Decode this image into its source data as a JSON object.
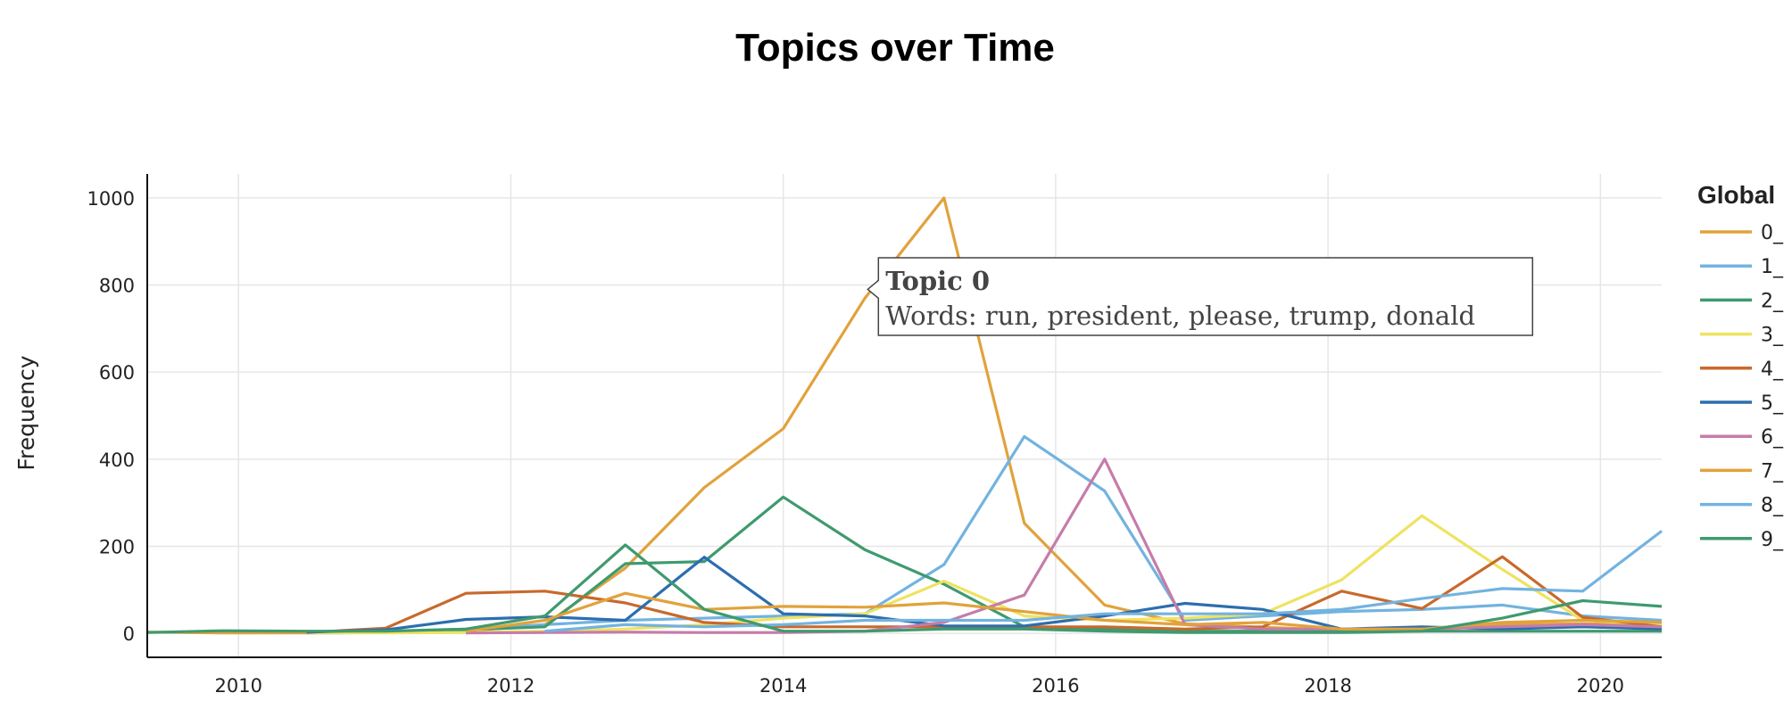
{
  "chart_data": {
    "type": "line",
    "title": "Topics over Time",
    "xlabel": "",
    "ylabel": "Frequency",
    "xlim": [
      2009.33,
      2020.45
    ],
    "ylim": [
      -55,
      1055
    ],
    "xticks": [
      2010,
      2012,
      2014,
      2016,
      2018,
      2020
    ],
    "yticks": [
      0,
      200,
      400,
      600,
      800,
      1000
    ],
    "grid": true,
    "legend": {
      "title": "Global",
      "position": "right"
    },
    "series": [
      {
        "name": "0_",
        "color": "#E1A23C",
        "x": [
          2009.33,
          2009.88,
          2010.5,
          2011.08,
          2011.67,
          2012.25,
          2012.84,
          2013.42,
          2014.0,
          2014.6,
          2015.18,
          2015.77,
          2016.36,
          2016.95,
          2017.52,
          2018.1,
          2018.69,
          2019.28,
          2019.87,
          2020.45
        ],
        "y": [
          3,
          1,
          1,
          2,
          5,
          20,
          150,
          335,
          470,
          770,
          1000,
          253,
          65,
          22,
          14,
          8,
          5,
          20,
          22,
          20
        ]
      },
      {
        "name": "1_",
        "color": "#72B3E0",
        "x": [
          2010.5,
          2011.08,
          2011.67,
          2012.25,
          2012.84,
          2013.42,
          2014.0,
          2014.6,
          2015.18,
          2015.77,
          2016.36,
          2016.95,
          2017.52,
          2018.1,
          2018.69,
          2019.28,
          2019.87,
          2020.45
        ],
        "y": [
          1,
          2,
          10,
          20,
          30,
          35,
          40,
          45,
          158,
          452,
          327,
          30,
          40,
          50,
          55,
          65,
          40,
          30
        ]
      },
      {
        "name": "2_",
        "color": "#3F9A6F",
        "x": [
          2010.5,
          2011.08,
          2011.67,
          2012.25,
          2012.84,
          2013.42,
          2014.0,
          2014.6,
          2015.18,
          2015.77,
          2016.36,
          2016.95,
          2017.52,
          2018.1,
          2018.69,
          2019.28,
          2019.87,
          2020.45
        ],
        "y": [
          2,
          3,
          8,
          15,
          160,
          165,
          313,
          192,
          113,
          15,
          10,
          5,
          5,
          5,
          5,
          5,
          5,
          5
        ]
      },
      {
        "name": "3_",
        "color": "#EEE362",
        "x": [
          2010.5,
          2011.08,
          2011.67,
          2012.25,
          2012.84,
          2013.42,
          2014.0,
          2014.6,
          2015.18,
          2015.77,
          2016.36,
          2016.95,
          2017.52,
          2018.1,
          2018.69,
          2019.28,
          2019.87,
          2020.45
        ],
        "y": [
          1,
          1,
          2,
          5,
          10,
          20,
          35,
          45,
          120,
          40,
          30,
          35,
          45,
          123,
          270,
          147,
          30,
          20
        ]
      },
      {
        "name": "4_",
        "color": "#C8692C",
        "x": [
          2010.5,
          2011.08,
          2011.67,
          2012.25,
          2012.84,
          2013.42,
          2014.0,
          2014.6,
          2015.18,
          2015.77,
          2016.36,
          2016.95,
          2017.52,
          2018.1,
          2018.69,
          2019.28,
          2019.87,
          2020.45
        ],
        "y": [
          2,
          12,
          92,
          97,
          70,
          25,
          15,
          15,
          15,
          15,
          15,
          10,
          15,
          97,
          57,
          176,
          37,
          15
        ]
      },
      {
        "name": "5_",
        "color": "#2C6EAE",
        "x": [
          2010.5,
          2011.08,
          2011.67,
          2012.25,
          2012.84,
          2013.42,
          2014.0,
          2014.6,
          2015.18,
          2015.77,
          2016.36,
          2016.95,
          2017.52,
          2018.1,
          2018.69,
          2019.28,
          2019.87,
          2020.45
        ],
        "y": [
          3,
          8,
          32,
          38,
          30,
          175,
          45,
          40,
          17,
          17,
          40,
          69,
          55,
          10,
          15,
          10,
          15,
          10
        ]
      },
      {
        "name": "6_",
        "color": "#C57CA9",
        "x": [
          2011.67,
          2012.25,
          2012.84,
          2013.42,
          2014.0,
          2014.6,
          2015.18,
          2015.77,
          2016.36,
          2016.95,
          2017.52,
          2018.1,
          2018.69,
          2019.28,
          2019.87,
          2020.45
        ],
        "y": [
          1,
          2,
          3,
          2,
          2,
          5,
          25,
          88,
          400,
          20,
          10,
          10,
          10,
          15,
          20,
          15
        ]
      },
      {
        "name": "7_",
        "color": "#E1A23C",
        "x": [
          2011.67,
          2012.25,
          2012.84,
          2013.42,
          2014.0,
          2014.6,
          2015.18,
          2015.77,
          2016.36,
          2016.95,
          2017.52,
          2018.1,
          2018.69,
          2019.28,
          2019.87,
          2020.45
        ],
        "y": [
          5,
          30,
          92,
          55,
          62,
          60,
          70,
          50,
          30,
          20,
          25,
          10,
          10,
          25,
          30,
          25
        ]
      },
      {
        "name": "8_",
        "color": "#72B3E0",
        "x": [
          2012.25,
          2012.84,
          2013.42,
          2014.0,
          2014.6,
          2015.18,
          2015.77,
          2016.36,
          2016.95,
          2017.52,
          2018.1,
          2018.69,
          2019.28,
          2019.87,
          2020.45
        ],
        "y": [
          5,
          20,
          15,
          20,
          30,
          30,
          30,
          45,
          45,
          45,
          55,
          80,
          103,
          97,
          235
        ]
      },
      {
        "name": "9_",
        "color": "#3F9A6F",
        "x": [
          2009.33,
          2009.88,
          2010.5,
          2011.08,
          2011.67,
          2012.25,
          2012.84,
          2013.42,
          2014.0,
          2014.6,
          2015.18,
          2015.77,
          2016.36,
          2016.95,
          2017.52,
          2018.1,
          2018.69,
          2019.28,
          2019.87,
          2020.45
        ],
        "y": [
          2,
          6,
          5,
          5,
          10,
          40,
          203,
          55,
          5,
          5,
          10,
          10,
          5,
          2,
          2,
          2,
          5,
          35,
          75,
          62
        ]
      }
    ],
    "tooltip": {
      "title": "Topic 0",
      "text": "Words: run, president, please, trump, donald",
      "x": 2014.62,
      "y": 790
    }
  }
}
